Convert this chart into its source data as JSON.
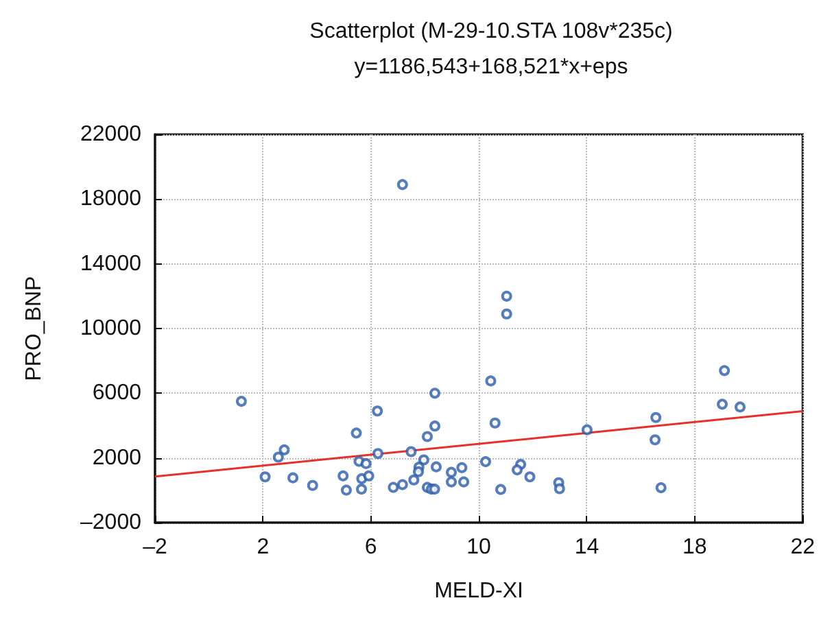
{
  "chart_data": {
    "type": "scatter",
    "title": "Scatterplot (M-29-10.STA 108v*235c)",
    "subtitle": "y=1186,543+168,521*x+eps",
    "xlabel": "MELD-XI",
    "ylabel": "PRO_BNP",
    "xlim": [
      -2,
      22
    ],
    "xticks": [
      {
        "value": -2,
        "label": "–2"
      },
      2,
      6,
      10,
      14,
      18,
      22
    ],
    "ylim": [
      -2000,
      22000
    ],
    "yticks": [
      {
        "value": -2000,
        "label": "–2000"
      },
      2000,
      6000,
      10000,
      14000,
      18000,
      22000
    ],
    "grid": true,
    "marker": "circle",
    "series": [
      {
        "color": "#2a5caa",
        "x": [
          7.17,
          8.37,
          11.03,
          11.03,
          10.44,
          19.1,
          1.2,
          6.24,
          5.46,
          8.37,
          8.09,
          2.79,
          2.57,
          6.26,
          7.49,
          5.56,
          5.82,
          7.96,
          7.78,
          7.76,
          8.42,
          8.98,
          9.37,
          10.25,
          2.08,
          3.11,
          3.84,
          4.97,
          5.09,
          5.66,
          5.92,
          5.65,
          6.83,
          7.17,
          7.59,
          8.09,
          8.24,
          8.36,
          8.98,
          9.44,
          10.6,
          11.55,
          11.42,
          11.89,
          10.81,
          12.96,
          12.99,
          14.01,
          16.56,
          16.53,
          16.75,
          19.02,
          19.68
        ],
        "values": [
          18900,
          6000,
          12000,
          10900,
          6760,
          7400,
          5500,
          4900,
          3540,
          3970,
          3320,
          2500,
          2050,
          2270,
          2390,
          1790,
          1650,
          1880,
          1430,
          1150,
          1450,
          1110,
          1400,
          1770,
          830,
          770,
          300,
          890,
          10,
          720,
          890,
          70,
          180,
          350,
          640,
          180,
          70,
          70,
          520,
          520,
          4160,
          1600,
          1260,
          830,
          50,
          470,
          100,
          3740,
          4500,
          3120,
          160,
          5320,
          5150
        ]
      },
      {
        "type": "line",
        "color": "#e8302a",
        "marker": "none",
        "x": [
          -2,
          22
        ],
        "values": [
          850,
          4894
        ]
      }
    ]
  }
}
